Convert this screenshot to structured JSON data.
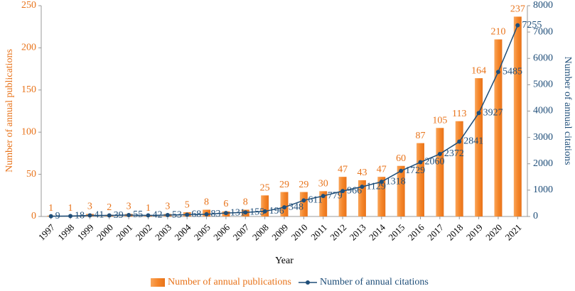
{
  "chart_data": {
    "type": "bar",
    "x_label": "Year",
    "y_label": "Number of annual publications",
    "y2_label": "Number of annual citations",
    "categories": [
      "1997",
      "1998",
      "1999",
      "2000",
      "2001",
      "2002",
      "2003",
      "2004",
      "2005",
      "2006",
      "2007",
      "2008",
      "2009",
      "2010",
      "2011",
      "2012",
      "2013",
      "2014",
      "2015",
      "2016",
      "2017",
      "2018",
      "2019",
      "2020",
      "2021"
    ],
    "series": [
      {
        "name": "Number of annual publications",
        "type": "bar",
        "color": "#f5862a",
        "values": [
          1,
          1,
          3,
          2,
          3,
          1,
          3,
          5,
          8,
          6,
          8,
          25,
          29,
          29,
          30,
          47,
          43,
          47,
          60,
          87,
          105,
          113,
          164,
          210,
          237
        ]
      },
      {
        "name": "Number of annual citations",
        "type": "line",
        "axis": "y2",
        "color": "#1f4e79",
        "values": [
          9,
          18,
          41,
          39,
          55,
          42,
          53,
          68,
          83,
          131,
          155,
          196,
          348,
          611,
          779,
          966,
          1129,
          1318,
          1729,
          2060,
          2372,
          2841,
          3927,
          5485,
          7255
        ]
      }
    ],
    "ylim": [
      0,
      250
    ],
    "yticks": [
      0,
      50,
      100,
      150,
      200,
      250
    ],
    "y2lim": [
      0,
      8000
    ],
    "y2ticks": [
      0,
      1000,
      2000,
      3000,
      4000,
      5000,
      6000,
      7000,
      8000
    ],
    "legend": "bottom",
    "grid": false
  }
}
